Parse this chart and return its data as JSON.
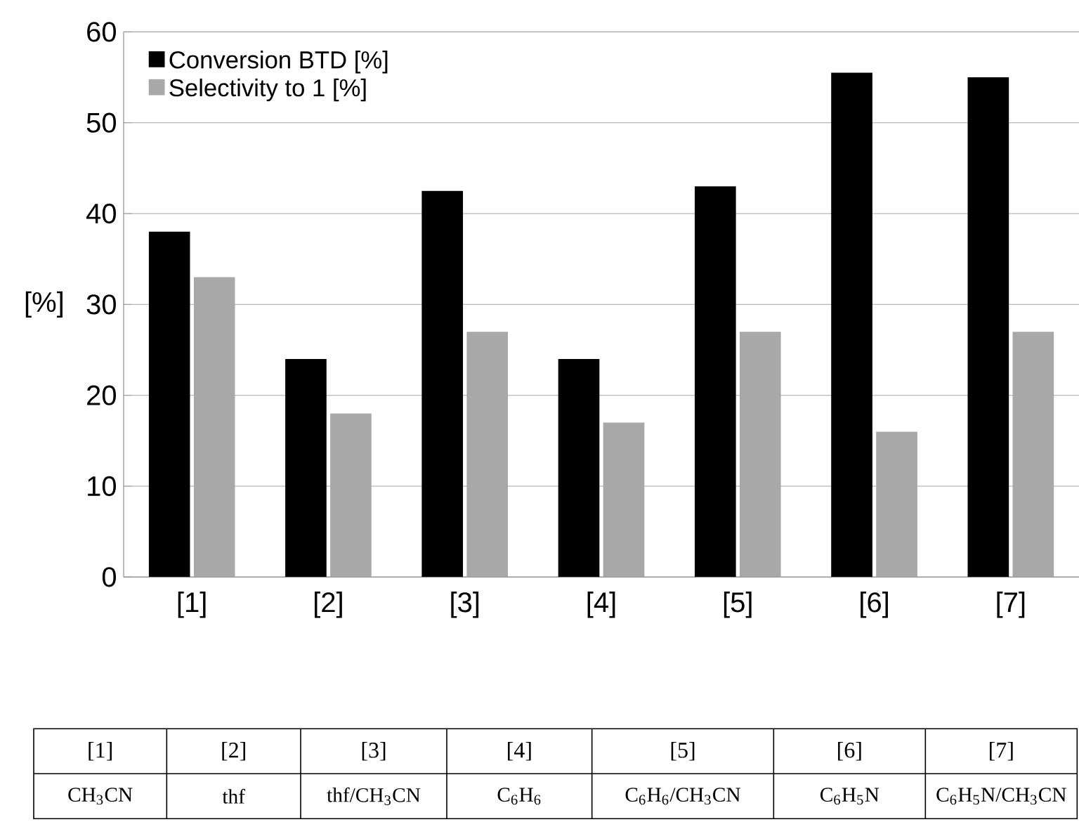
{
  "chart_data": {
    "type": "bar",
    "ylabel": "[%]",
    "categories": [
      "[1]",
      "[2]",
      "[3]",
      "[4]",
      "[5]",
      "[6]",
      "[7]"
    ],
    "series": [
      {
        "name": "Conversion BTD [%]",
        "color": "#000000",
        "values": [
          38,
          24,
          42.5,
          24,
          43,
          55.5,
          55
        ]
      },
      {
        "name": "Selectivity to 1 [%]",
        "color": "#a8a8a8",
        "values": [
          33,
          18,
          27,
          17,
          27,
          16,
          27
        ]
      }
    ],
    "ylim": [
      0,
      60
    ],
    "yticks": [
      0,
      10,
      20,
      30,
      40,
      50,
      60
    ],
    "grid": "y",
    "legend": "top left",
    "annotations": [
      "CH$_{3}$CN",
      "thf",
      "thf/CH$_{3}$CN",
      "C$_{6}$H$_{6}$",
      "C$_{6}$H$_{6}$/CH$_{3}$CN",
      "C$_{6}$H$_{5}$N",
      "C$_{6}$H$_{5}$N/CH$_{3}$CN"
    ]
  }
}
